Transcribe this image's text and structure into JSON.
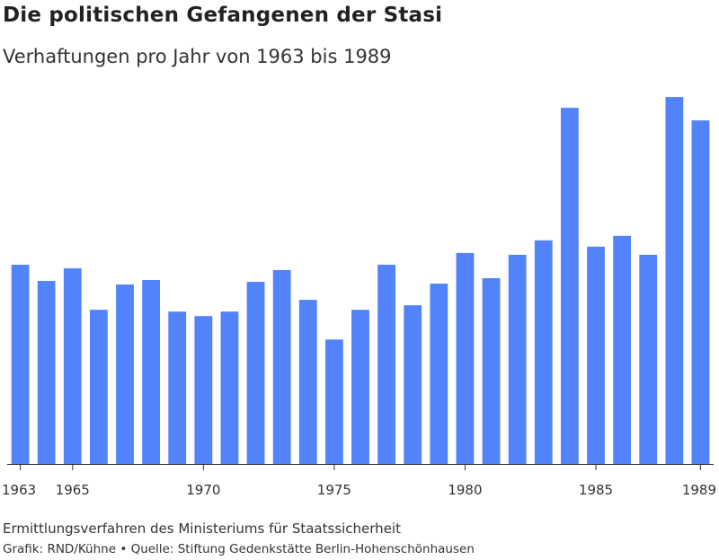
{
  "header": {
    "title": "Die politischen Gefangenen der Stasi",
    "subtitle": "Verhaftungen pro Jahr von 1963 bis 1989"
  },
  "footer": {
    "note": "Ermittlungsverfahren des Ministeriums für Staatssicherheit",
    "source": "Grafik: RND/Kühne • Quelle: Stiftung Gedenkstätte Berlin-Hohenschönhausen"
  },
  "colors": {
    "bar": "#5283fb",
    "axis": "#333333"
  },
  "chart_data": {
    "type": "bar",
    "title": "Die politischen Gefangenen der Stasi",
    "subtitle": "Verhaftungen pro Jahr von 1963 bis 1989",
    "xlabel": "",
    "ylabel": "",
    "categories": [
      1963,
      1964,
      1965,
      1966,
      1967,
      1968,
      1969,
      1970,
      1971,
      1972,
      1973,
      1974,
      1975,
      1976,
      1977,
      1978,
      1979,
      1980,
      1981,
      1982,
      1983,
      1984,
      1985,
      1986,
      1987,
      1988,
      1989
    ],
    "values": [
      2210,
      2030,
      2170,
      1710,
      1990,
      2040,
      1690,
      1640,
      1690,
      2020,
      2150,
      1820,
      1380,
      1710,
      2210,
      1760,
      2000,
      2340,
      2060,
      2320,
      2480,
      3950,
      2410,
      2530,
      2320,
      4070,
      3810
    ],
    "x_tick_labels": [
      "1963",
      "1965",
      "1970",
      "1975",
      "1980",
      "1985",
      "1989"
    ],
    "x_tick_years": [
      1963,
      1965,
      1970,
      1975,
      1980,
      1985,
      1989
    ],
    "ylim": [
      0,
      4200
    ],
    "y_axis_visible": false,
    "grid": false,
    "legend": "none"
  }
}
